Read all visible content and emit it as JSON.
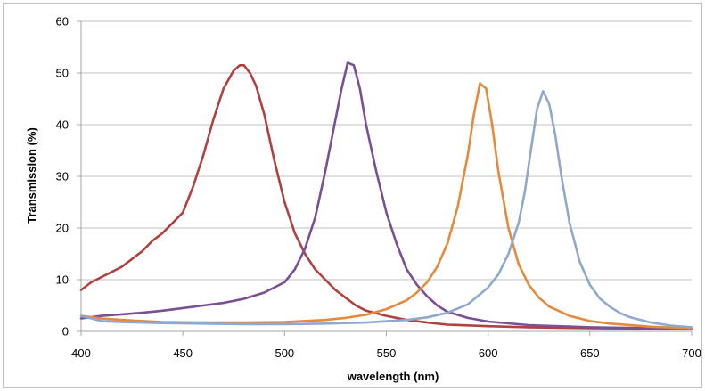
{
  "chart_data": {
    "type": "line",
    "title": "",
    "xlabel": "wavelength (nm)",
    "ylabel": "Transmission (%)",
    "xlim": [
      400,
      700
    ],
    "ylim": [
      0,
      60
    ],
    "xticks": [
      400,
      450,
      500,
      550,
      600,
      650,
      700
    ],
    "yticks": [
      0,
      10,
      20,
      30,
      40,
      50,
      60
    ],
    "grid": "horizontal",
    "legend": "none",
    "series": [
      {
        "color": "#b0413e",
        "x": [
          400,
          405,
          410,
          415,
          420,
          425,
          430,
          435,
          440,
          445,
          450,
          455,
          460,
          465,
          470,
          475,
          478,
          480,
          483,
          486,
          490,
          495,
          500,
          505,
          510,
          515,
          520,
          525,
          530,
          535,
          540,
          550,
          560,
          570,
          580,
          600,
          620,
          650,
          700
        ],
        "y": [
          8,
          9.5,
          10.5,
          11.5,
          12.5,
          14,
          15.5,
          17.5,
          19,
          21,
          23,
          28,
          34,
          41,
          47,
          50.5,
          51.5,
          51.5,
          50,
          47.5,
          42,
          33,
          25,
          19,
          15,
          12,
          10,
          8,
          6.5,
          5,
          4,
          3,
          2.2,
          1.7,
          1.3,
          1,
          0.8,
          0.6,
          0.5
        ]
      },
      {
        "color": "#7b4f96",
        "x": [
          400,
          410,
          420,
          430,
          440,
          450,
          460,
          470,
          480,
          490,
          500,
          505,
          510,
          515,
          520,
          525,
          528,
          531,
          534,
          537,
          540,
          545,
          550,
          555,
          560,
          565,
          570,
          575,
          580,
          590,
          600,
          620,
          650,
          700
        ],
        "y": [
          2.5,
          3.0,
          3.3,
          3.6,
          4.0,
          4.5,
          5.0,
          5.5,
          6.3,
          7.5,
          9.5,
          12,
          16,
          22,
          31,
          41,
          47,
          52,
          51.5,
          47,
          40,
          31,
          23,
          17,
          12,
          9,
          6.8,
          5,
          3.8,
          2.6,
          1.9,
          1.2,
          0.8,
          0.5
        ]
      },
      {
        "color": "#e58a3c",
        "x": [
          400,
          410,
          420,
          440,
          460,
          480,
          500,
          520,
          530,
          540,
          550,
          560,
          565,
          570,
          575,
          580,
          585,
          590,
          593,
          596,
          599,
          602,
          605,
          610,
          615,
          620,
          625,
          630,
          640,
          650,
          660,
          680,
          700
        ],
        "y": [
          3,
          2.5,
          2.2,
          1.8,
          1.7,
          1.7,
          1.8,
          2.2,
          2.6,
          3.2,
          4.3,
          6,
          7.5,
          9.5,
          12.5,
          17,
          24,
          34,
          42,
          48,
          47,
          40,
          31,
          20,
          13,
          9,
          6.5,
          4.8,
          3,
          2,
          1.5,
          0.9,
          0.6
        ]
      },
      {
        "color": "#8fa9ce",
        "x": [
          400,
          410,
          420,
          440,
          460,
          480,
          500,
          520,
          540,
          560,
          570,
          580,
          590,
          600,
          605,
          610,
          615,
          618,
          621,
          624,
          627,
          630,
          633,
          636,
          640,
          645,
          650,
          655,
          660,
          665,
          670,
          680,
          690,
          700
        ],
        "y": [
          3,
          2,
          1.8,
          1.6,
          1.5,
          1.4,
          1.4,
          1.5,
          1.7,
          2.2,
          2.7,
          3.6,
          5.2,
          8.5,
          11,
          15,
          21,
          27,
          35,
          43,
          46.5,
          44,
          38,
          30,
          21,
          13.5,
          9,
          6.3,
          4.7,
          3.5,
          2.7,
          1.7,
          1.1,
          0.8
        ]
      }
    ]
  }
}
